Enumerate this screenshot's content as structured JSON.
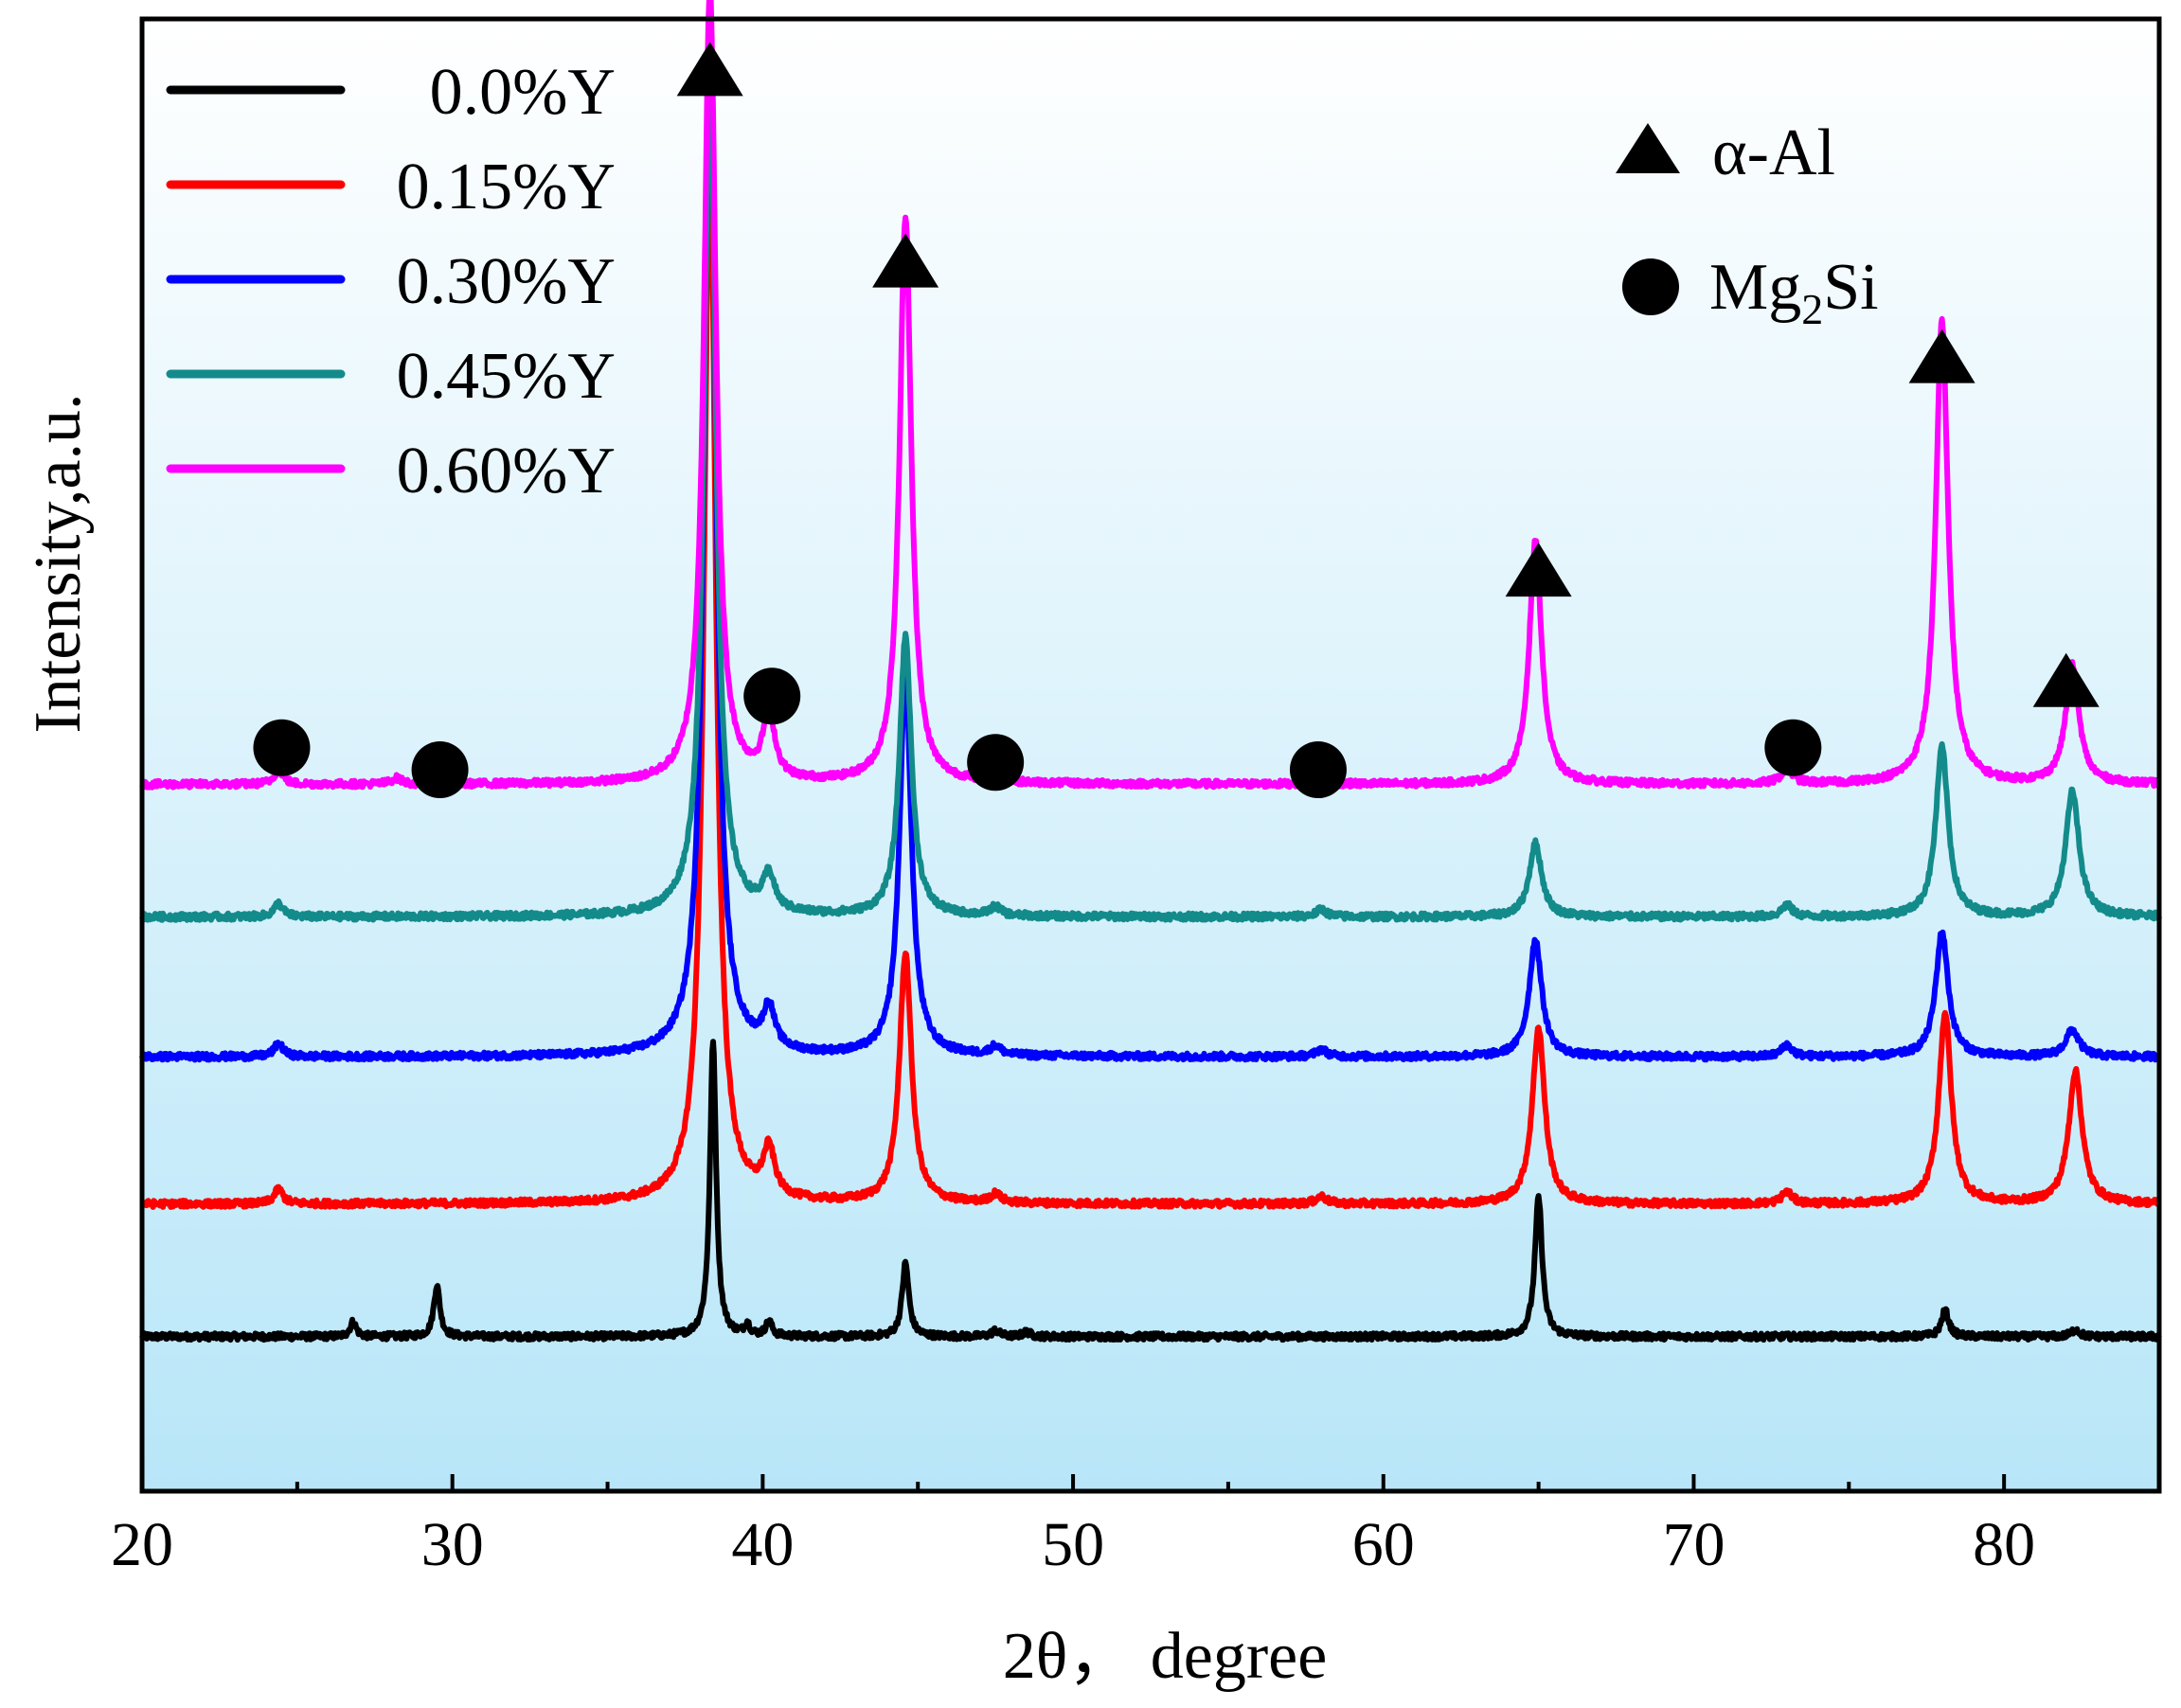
{
  "chart_data": {
    "type": "line",
    "title": "",
    "xlabel": "2θ，  degree",
    "ylabel": "Intensity,a.u.",
    "xlim": [
      20,
      85
    ],
    "ylim": [
      0,
      100
    ],
    "xticks": [
      20,
      30,
      40,
      50,
      60,
      70,
      80
    ],
    "xtick_labels": [
      "20",
      "30",
      "40",
      "50",
      "60",
      "70",
      "80"
    ],
    "yticks_shown": false,
    "grid": false,
    "legend_position": "top-left",
    "background": {
      "gradient": true,
      "top_color": "#ffffff",
      "bottom_color": "#b8e6f8"
    },
    "series": [
      {
        "name": "0.0%Y",
        "color": "#000000",
        "baseline": 10.5,
        "peaks": [
          {
            "x": 26.8,
            "h": 1.0,
            "w": 0.12
          },
          {
            "x": 29.5,
            "h": 3.5,
            "w": 0.12
          },
          {
            "x": 38.4,
            "h": 20.0,
            "w": 0.12
          },
          {
            "x": 39.5,
            "h": 0.8,
            "w": 0.1
          },
          {
            "x": 40.2,
            "h": 1.0,
            "w": 0.12
          },
          {
            "x": 44.6,
            "h": 5.0,
            "w": 0.13
          },
          {
            "x": 47.5,
            "h": 0.4,
            "w": 0.15
          },
          {
            "x": 48.5,
            "h": 0.3,
            "w": 0.15
          },
          {
            "x": 65.0,
            "h": 9.5,
            "w": 0.14
          },
          {
            "x": 78.1,
            "h": 1.8,
            "w": 0.14
          },
          {
            "x": 82.3,
            "h": 0.5,
            "w": 0.15
          }
        ]
      },
      {
        "name": "0.15%Y",
        "color": "#ff0000",
        "baseline": 19.5,
        "peaks": [
          {
            "x": 24.4,
            "h": 1.0,
            "w": 0.17
          },
          {
            "x": 38.3,
            "h": 72.0,
            "w": 0.23
          },
          {
            "x": 40.2,
            "h": 3.2,
            "w": 0.22
          },
          {
            "x": 44.6,
            "h": 17.0,
            "w": 0.23
          },
          {
            "x": 47.5,
            "h": 0.6,
            "w": 0.2
          },
          {
            "x": 58.0,
            "h": 0.5,
            "w": 0.2
          },
          {
            "x": 65.0,
            "h": 12.0,
            "w": 0.24
          },
          {
            "x": 73.0,
            "h": 0.8,
            "w": 0.2
          },
          {
            "x": 78.1,
            "h": 13.0,
            "w": 0.24
          },
          {
            "x": 82.3,
            "h": 9.0,
            "w": 0.26
          }
        ]
      },
      {
        "name": "0.30%Y",
        "color": "#0000ff",
        "baseline": 29.5,
        "peaks": [
          {
            "x": 24.4,
            "h": 0.9,
            "w": 0.17
          },
          {
            "x": 38.3,
            "h": 70.0,
            "w": 0.23
          },
          {
            "x": 40.2,
            "h": 2.8,
            "w": 0.22
          },
          {
            "x": 44.6,
            "h": 26.0,
            "w": 0.23
          },
          {
            "x": 47.5,
            "h": 0.6,
            "w": 0.2
          },
          {
            "x": 58.0,
            "h": 0.5,
            "w": 0.2
          },
          {
            "x": 64.9,
            "h": 8.0,
            "w": 0.24
          },
          {
            "x": 73.0,
            "h": 0.8,
            "w": 0.2
          },
          {
            "x": 78.0,
            "h": 8.5,
            "w": 0.24
          },
          {
            "x": 82.2,
            "h": 1.8,
            "w": 0.26
          }
        ]
      },
      {
        "name": "0.45%Y",
        "color": "#138b8b",
        "baseline": 39.0,
        "peaks": [
          {
            "x": 24.4,
            "h": 0.9,
            "w": 0.17
          },
          {
            "x": 38.3,
            "h": 58.0,
            "w": 0.23
          },
          {
            "x": 40.2,
            "h": 2.4,
            "w": 0.22
          },
          {
            "x": 44.6,
            "h": 19.0,
            "w": 0.23
          },
          {
            "x": 47.5,
            "h": 0.6,
            "w": 0.2
          },
          {
            "x": 58.0,
            "h": 0.5,
            "w": 0.2
          },
          {
            "x": 64.9,
            "h": 5.0,
            "w": 0.24
          },
          {
            "x": 73.0,
            "h": 0.8,
            "w": 0.2
          },
          {
            "x": 78.0,
            "h": 11.5,
            "w": 0.24
          },
          {
            "x": 82.2,
            "h": 8.5,
            "w": 0.26
          }
        ]
      },
      {
        "name": "0.60%Y",
        "color": "#ff00ff",
        "baseline": 48.0,
        "peaks": [
          {
            "x": 24.4,
            "h": 1.0,
            "w": 0.17
          },
          {
            "x": 28.2,
            "h": 0.4,
            "w": 0.2
          },
          {
            "x": 38.3,
            "h": 54.0,
            "w": 0.23
          },
          {
            "x": 40.2,
            "h": 4.5,
            "w": 0.22
          },
          {
            "x": 44.6,
            "h": 38.5,
            "w": 0.23
          },
          {
            "x": 47.5,
            "h": 0.6,
            "w": 0.2
          },
          {
            "x": 58.0,
            "h": 0.4,
            "w": 0.2
          },
          {
            "x": 64.9,
            "h": 16.5,
            "w": 0.24
          },
          {
            "x": 73.0,
            "h": 1.0,
            "w": 0.22
          },
          {
            "x": 78.0,
            "h": 31.5,
            "w": 0.24
          },
          {
            "x": 82.2,
            "h": 8.0,
            "w": 0.26
          }
        ]
      }
    ],
    "phase_legend": [
      {
        "symbol": "triangle",
        "label": "α-Al"
      },
      {
        "symbol": "circle",
        "label": "Mg",
        "subscript": "2",
        "suffix": "Si"
      }
    ],
    "annotations": [
      {
        "symbol": "triangle",
        "phase": "α-Al",
        "x": 38.3,
        "y": 96.5
      },
      {
        "symbol": "triangle",
        "phase": "α-Al",
        "x": 44.6,
        "y": 83.5
      },
      {
        "symbol": "triangle",
        "phase": "α-Al",
        "x": 65.0,
        "y": 62.5
      },
      {
        "symbol": "triangle",
        "phase": "α-Al",
        "x": 78.0,
        "y": 77.0
      },
      {
        "symbol": "triangle",
        "phase": "α-Al",
        "x": 82.0,
        "y": 55.0
      },
      {
        "symbol": "circle",
        "phase": "Mg2Si",
        "x": 24.5,
        "y": 50.5
      },
      {
        "symbol": "circle",
        "phase": "Mg2Si",
        "x": 29.6,
        "y": 49.0
      },
      {
        "symbol": "circle",
        "phase": "Mg2Si",
        "x": 40.3,
        "y": 54.0
      },
      {
        "symbol": "circle",
        "phase": "Mg2Si",
        "x": 47.5,
        "y": 49.5
      },
      {
        "symbol": "circle",
        "phase": "Mg2Si",
        "x": 57.9,
        "y": 49.0
      },
      {
        "symbol": "circle",
        "phase": "Mg2Si",
        "x": 73.2,
        "y": 50.5
      }
    ]
  }
}
